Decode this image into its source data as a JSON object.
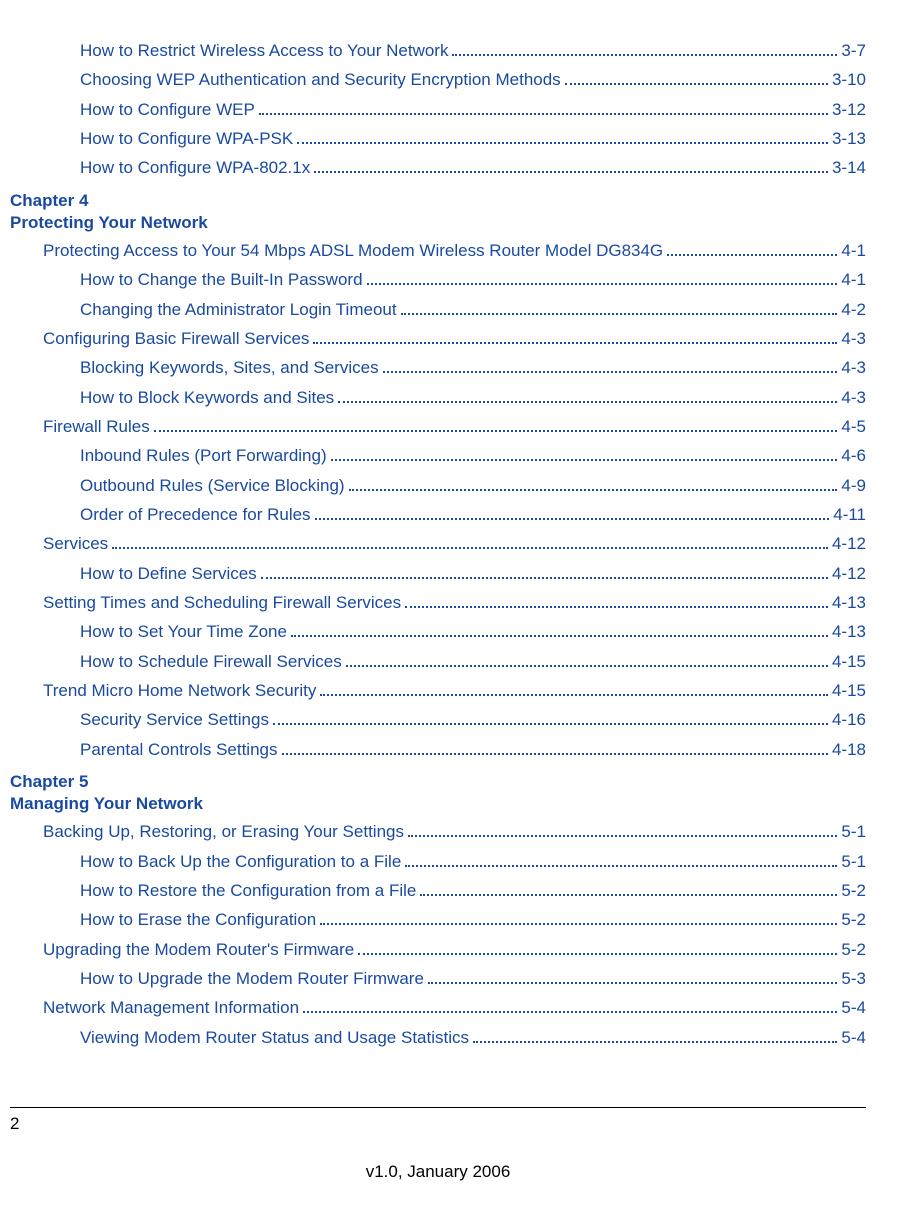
{
  "toc": {
    "preChapter4": [
      {
        "label": "How to Restrict Wireless Access to Your Network",
        "page": "3-7",
        "indent": 2
      },
      {
        "label": "Choosing WEP Authentication and Security Encryption Methods",
        "page": "3-10",
        "indent": 2
      },
      {
        "label": "How to Configure WEP",
        "page": "3-12",
        "indent": 2
      },
      {
        "label": "How to Configure WPA-PSK",
        "page": "3-13",
        "indent": 2
      },
      {
        "label": "How to Configure WPA-802.1x",
        "page": "3-14",
        "indent": 2
      }
    ],
    "chapter4": {
      "num": "Chapter 4",
      "title": "Protecting Your Network"
    },
    "chapter4Items": [
      {
        "label": "Protecting Access to Your 54 Mbps ADSL Modem Wireless Router Model DG834G",
        "page": "4-1",
        "indent": 1
      },
      {
        "label": "How to Change the Built-In Password",
        "page": "4-1",
        "indent": 2
      },
      {
        "label": "Changing the Administrator Login Timeout",
        "page": "4-2",
        "indent": 2
      },
      {
        "label": "Configuring Basic Firewall Services",
        "page": "4-3",
        "indent": 1
      },
      {
        "label": "Blocking Keywords, Sites, and Services",
        "page": "4-3",
        "indent": 2
      },
      {
        "label": "How to Block Keywords and Sites",
        "page": "4-3",
        "indent": 2
      },
      {
        "label": "Firewall Rules",
        "page": "4-5",
        "indent": 1
      },
      {
        "label": "Inbound Rules (Port Forwarding)",
        "page": "4-6",
        "indent": 2
      },
      {
        "label": "Outbound Rules (Service Blocking)",
        "page": "4-9",
        "indent": 2
      },
      {
        "label": "Order of Precedence for Rules",
        "page": "4-11",
        "indent": 2
      },
      {
        "label": "Services",
        "page": "4-12",
        "indent": 1
      },
      {
        "label": "How to Define Services",
        "page": "4-12",
        "indent": 2
      },
      {
        "label": "Setting Times and Scheduling Firewall Services",
        "page": "4-13",
        "indent": 1
      },
      {
        "label": "How to Set Your Time Zone",
        "page": "4-13",
        "indent": 2
      },
      {
        "label": "How to Schedule Firewall Services",
        "page": "4-15",
        "indent": 2
      },
      {
        "label": "Trend Micro Home Network Security",
        "page": "4-15",
        "indent": 1
      },
      {
        "label": "Security Service Settings",
        "page": "4-16",
        "indent": 2
      },
      {
        "label": "Parental Controls Settings",
        "page": "4-18",
        "indent": 2
      }
    ],
    "chapter5": {
      "num": "Chapter 5",
      "title": "Managing Your Network"
    },
    "chapter5Items": [
      {
        "label": "Backing Up, Restoring, or Erasing Your Settings",
        "page": "5-1",
        "indent": 1
      },
      {
        "label": "How to Back Up the Configuration to a File",
        "page": "5-1",
        "indent": 2
      },
      {
        "label": "How to Restore the Configuration from a File",
        "page": "5-2",
        "indent": 2
      },
      {
        "label": "How to Erase the Configuration",
        "page": "5-2",
        "indent": 2
      },
      {
        "label": "Upgrading the Modem Router's Firmware",
        "page": "5-2",
        "indent": 1
      },
      {
        "label": "How to Upgrade the Modem Router Firmware",
        "page": "5-3",
        "indent": 2
      },
      {
        "label": "Network Management Information",
        "page": "5-4",
        "indent": 1
      },
      {
        "label": "Viewing Modem Router Status and Usage Statistics",
        "page": "5-4",
        "indent": 2
      }
    ]
  },
  "footer": {
    "pageNumber": "2",
    "date": "v1.0, January 2006"
  },
  "style": {
    "link_color": "#1a4aa0",
    "body_color": "#000000",
    "font_size_pt": 13
  }
}
